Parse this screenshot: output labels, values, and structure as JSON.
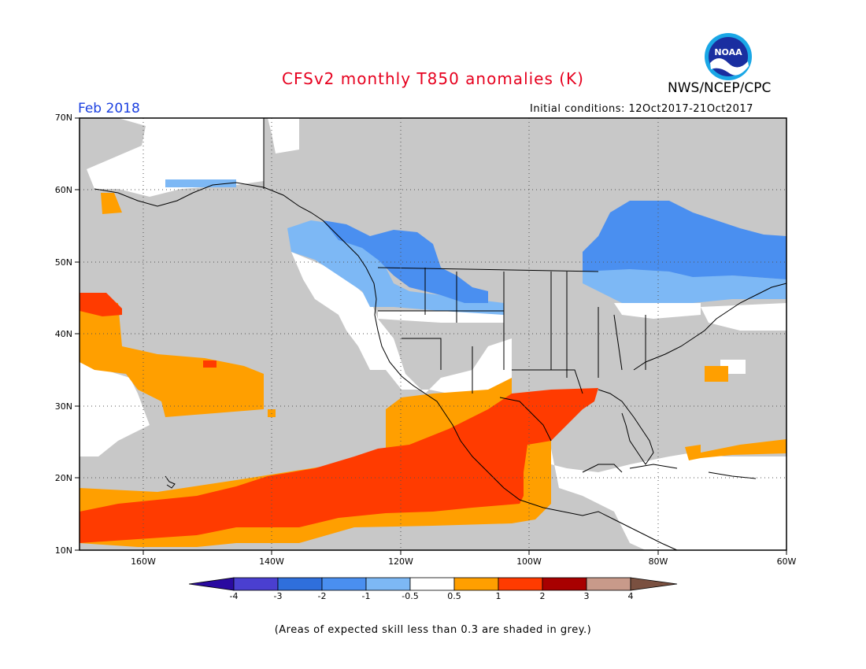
{
  "header": {
    "title": "CFSv2 monthly T850 anomalies (K)",
    "agency": "NWS/NCEP/CPC",
    "logo_text": "NOAA",
    "valid_month": "Feb 2018",
    "initial_conditions": "Initial conditions: 12Oct2017-21Oct2017"
  },
  "axes": {
    "lat_labels": [
      "70N",
      "60N",
      "50N",
      "40N",
      "30N",
      "20N",
      "10N"
    ],
    "lon_labels": [
      "160W",
      "140W",
      "120W",
      "100W",
      "80W",
      "60W"
    ]
  },
  "legend": {
    "labels": [
      "-4",
      "-3",
      "-2",
      "-1",
      "-0.5",
      "0.5",
      "1",
      "2",
      "3",
      "4"
    ],
    "colors": [
      "#2a0aa0",
      "#4a3fd0",
      "#2f6fdc",
      "#4a8ff0",
      "#7db8f5",
      "#ffffff",
      "#ff9f00",
      "#ff3b00",
      "#a80000",
      "#c89a8a",
      "#7a5040"
    ]
  },
  "colors": {
    "skill_mask": "#c8c8c8",
    "light_blue": "#7db8f5",
    "blue": "#4a8ff0",
    "orange": "#ff9f00",
    "red": "#ff3b00"
  },
  "footer": {
    "caption": "(Areas of expected skill less than 0.3 are shaded in grey.)"
  }
}
